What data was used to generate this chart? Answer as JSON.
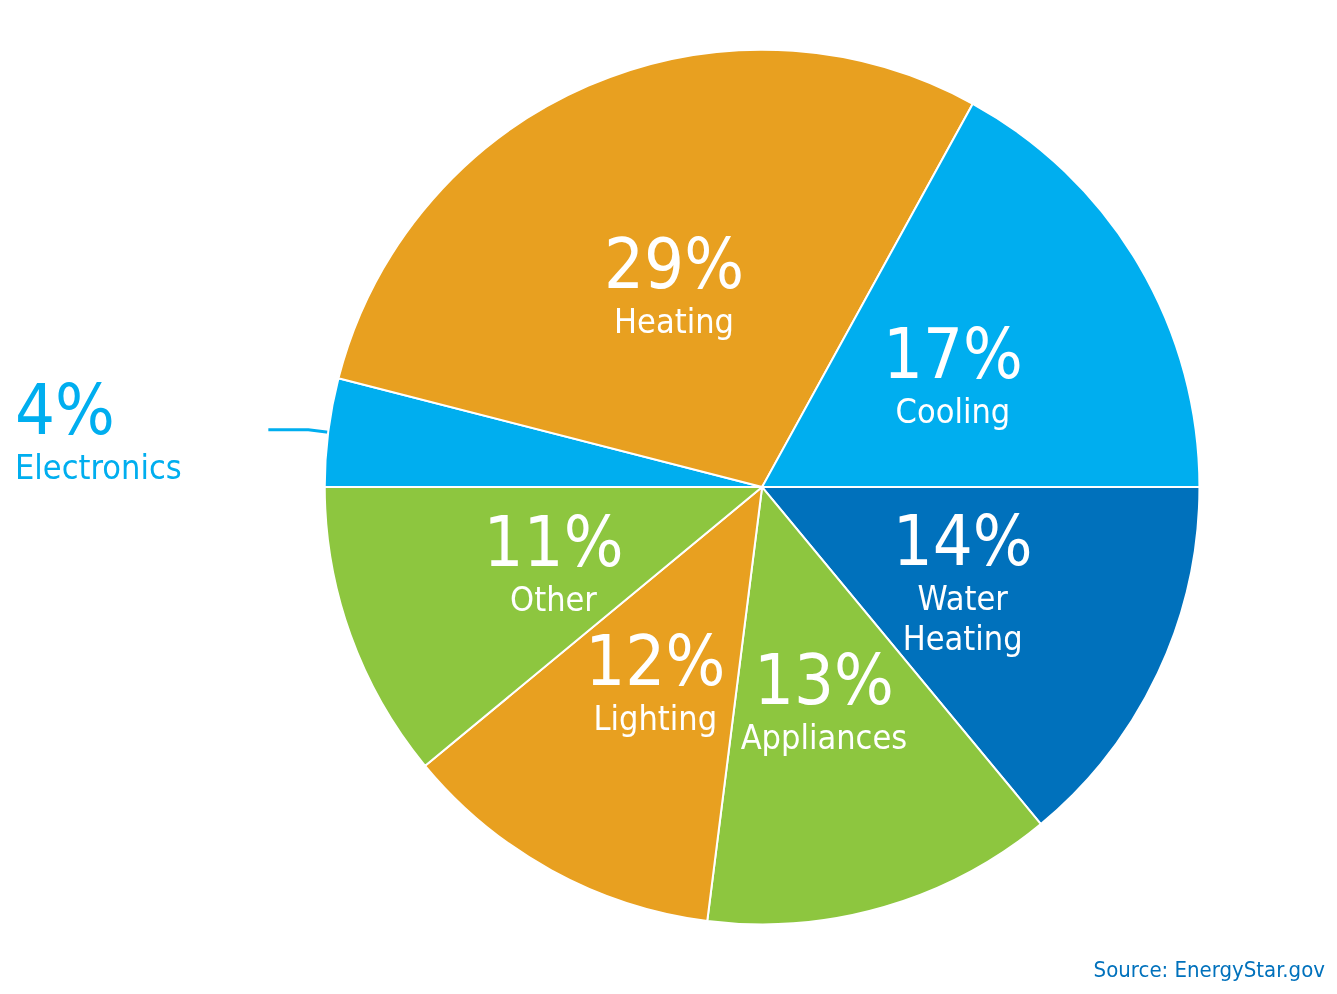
{
  "chart_data": {
    "type": "pie",
    "categories": [
      "Electronics",
      "Heating",
      "Cooling",
      "Water Heating",
      "Appliances",
      "Lighting",
      "Other"
    ],
    "values": [
      4,
      29,
      17,
      14,
      13,
      12,
      11
    ],
    "value_labels": [
      "4%",
      "29%",
      "17%",
      "14%",
      "13%",
      "12%",
      "11%"
    ],
    "colors": [
      "#00aeef",
      "#e8a020",
      "#00aeef",
      "#0071bc",
      "#8dc63f",
      "#e8a020",
      "#8dc63f"
    ],
    "annotations": [
      "Source: EnergyStar.gov"
    ]
  }
}
